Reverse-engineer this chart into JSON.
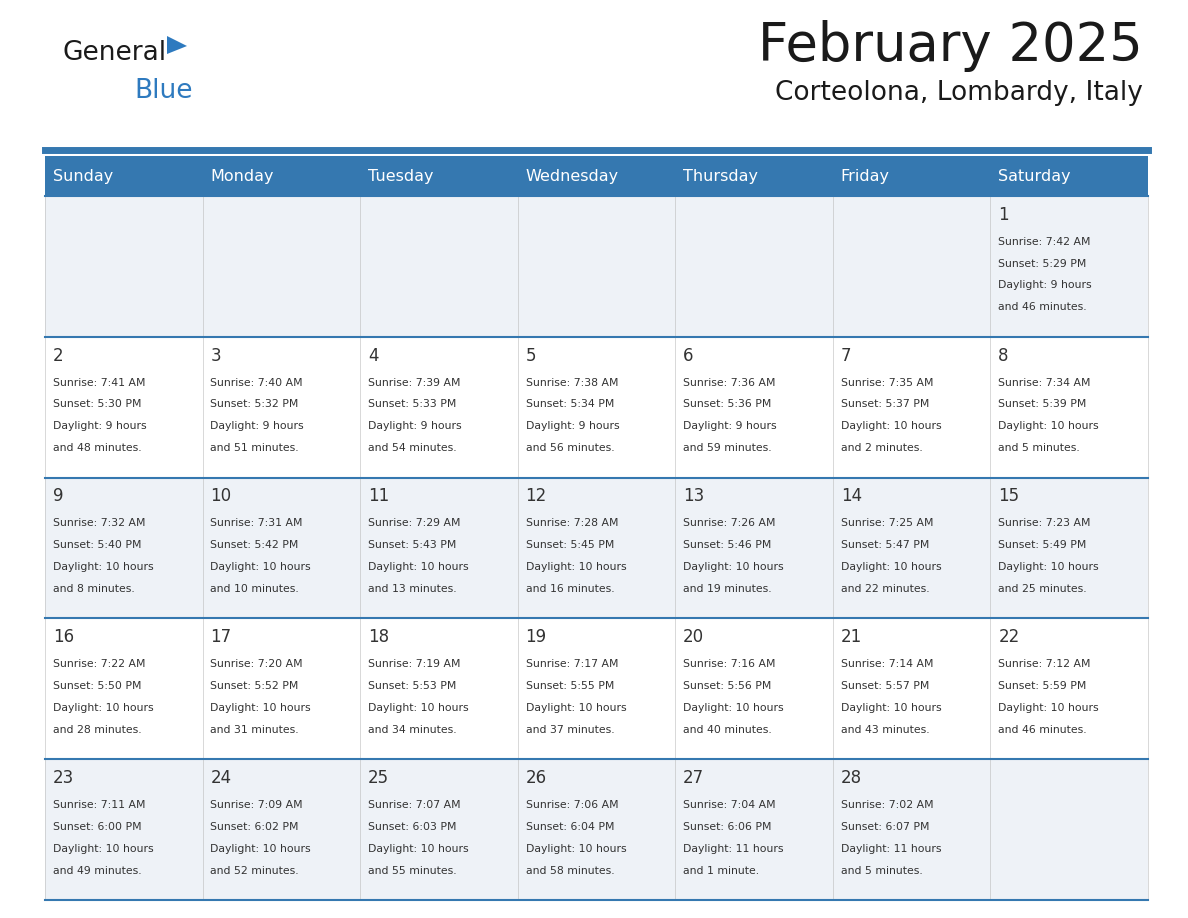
{
  "title": "February 2025",
  "subtitle": "Corteolona, Lombardy, Italy",
  "header_color": "#3578b0",
  "header_text_color": "#ffffff",
  "cell_bg_even": "#eef2f7",
  "cell_bg_odd": "#ffffff",
  "border_color": "#3578b0",
  "text_color": "#333333",
  "day_headers": [
    "Sunday",
    "Monday",
    "Tuesday",
    "Wednesday",
    "Thursday",
    "Friday",
    "Saturday"
  ],
  "days": [
    {
      "day": 1,
      "col": 6,
      "row": 0,
      "sunrise": "7:42 AM",
      "sunset": "5:29 PM",
      "daylight": "9 hours\nand 46 minutes."
    },
    {
      "day": 2,
      "col": 0,
      "row": 1,
      "sunrise": "7:41 AM",
      "sunset": "5:30 PM",
      "daylight": "9 hours\nand 48 minutes."
    },
    {
      "day": 3,
      "col": 1,
      "row": 1,
      "sunrise": "7:40 AM",
      "sunset": "5:32 PM",
      "daylight": "9 hours\nand 51 minutes."
    },
    {
      "day": 4,
      "col": 2,
      "row": 1,
      "sunrise": "7:39 AM",
      "sunset": "5:33 PM",
      "daylight": "9 hours\nand 54 minutes."
    },
    {
      "day": 5,
      "col": 3,
      "row": 1,
      "sunrise": "7:38 AM",
      "sunset": "5:34 PM",
      "daylight": "9 hours\nand 56 minutes."
    },
    {
      "day": 6,
      "col": 4,
      "row": 1,
      "sunrise": "7:36 AM",
      "sunset": "5:36 PM",
      "daylight": "9 hours\nand 59 minutes."
    },
    {
      "day": 7,
      "col": 5,
      "row": 1,
      "sunrise": "7:35 AM",
      "sunset": "5:37 PM",
      "daylight": "10 hours\nand 2 minutes."
    },
    {
      "day": 8,
      "col": 6,
      "row": 1,
      "sunrise": "7:34 AM",
      "sunset": "5:39 PM",
      "daylight": "10 hours\nand 5 minutes."
    },
    {
      "day": 9,
      "col": 0,
      "row": 2,
      "sunrise": "7:32 AM",
      "sunset": "5:40 PM",
      "daylight": "10 hours\nand 8 minutes."
    },
    {
      "day": 10,
      "col": 1,
      "row": 2,
      "sunrise": "7:31 AM",
      "sunset": "5:42 PM",
      "daylight": "10 hours\nand 10 minutes."
    },
    {
      "day": 11,
      "col": 2,
      "row": 2,
      "sunrise": "7:29 AM",
      "sunset": "5:43 PM",
      "daylight": "10 hours\nand 13 minutes."
    },
    {
      "day": 12,
      "col": 3,
      "row": 2,
      "sunrise": "7:28 AM",
      "sunset": "5:45 PM",
      "daylight": "10 hours\nand 16 minutes."
    },
    {
      "day": 13,
      "col": 4,
      "row": 2,
      "sunrise": "7:26 AM",
      "sunset": "5:46 PM",
      "daylight": "10 hours\nand 19 minutes."
    },
    {
      "day": 14,
      "col": 5,
      "row": 2,
      "sunrise": "7:25 AM",
      "sunset": "5:47 PM",
      "daylight": "10 hours\nand 22 minutes."
    },
    {
      "day": 15,
      "col": 6,
      "row": 2,
      "sunrise": "7:23 AM",
      "sunset": "5:49 PM",
      "daylight": "10 hours\nand 25 minutes."
    },
    {
      "day": 16,
      "col": 0,
      "row": 3,
      "sunrise": "7:22 AM",
      "sunset": "5:50 PM",
      "daylight": "10 hours\nand 28 minutes."
    },
    {
      "day": 17,
      "col": 1,
      "row": 3,
      "sunrise": "7:20 AM",
      "sunset": "5:52 PM",
      "daylight": "10 hours\nand 31 minutes."
    },
    {
      "day": 18,
      "col": 2,
      "row": 3,
      "sunrise": "7:19 AM",
      "sunset": "5:53 PM",
      "daylight": "10 hours\nand 34 minutes."
    },
    {
      "day": 19,
      "col": 3,
      "row": 3,
      "sunrise": "7:17 AM",
      "sunset": "5:55 PM",
      "daylight": "10 hours\nand 37 minutes."
    },
    {
      "day": 20,
      "col": 4,
      "row": 3,
      "sunrise": "7:16 AM",
      "sunset": "5:56 PM",
      "daylight": "10 hours\nand 40 minutes."
    },
    {
      "day": 21,
      "col": 5,
      "row": 3,
      "sunrise": "7:14 AM",
      "sunset": "5:57 PM",
      "daylight": "10 hours\nand 43 minutes."
    },
    {
      "day": 22,
      "col": 6,
      "row": 3,
      "sunrise": "7:12 AM",
      "sunset": "5:59 PM",
      "daylight": "10 hours\nand 46 minutes."
    },
    {
      "day": 23,
      "col": 0,
      "row": 4,
      "sunrise": "7:11 AM",
      "sunset": "6:00 PM",
      "daylight": "10 hours\nand 49 minutes."
    },
    {
      "day": 24,
      "col": 1,
      "row": 4,
      "sunrise": "7:09 AM",
      "sunset": "6:02 PM",
      "daylight": "10 hours\nand 52 minutes."
    },
    {
      "day": 25,
      "col": 2,
      "row": 4,
      "sunrise": "7:07 AM",
      "sunset": "6:03 PM",
      "daylight": "10 hours\nand 55 minutes."
    },
    {
      "day": 26,
      "col": 3,
      "row": 4,
      "sunrise": "7:06 AM",
      "sunset": "6:04 PM",
      "daylight": "10 hours\nand 58 minutes."
    },
    {
      "day": 27,
      "col": 4,
      "row": 4,
      "sunrise": "7:04 AM",
      "sunset": "6:06 PM",
      "daylight": "11 hours\nand 1 minute."
    },
    {
      "day": 28,
      "col": 5,
      "row": 4,
      "sunrise": "7:02 AM",
      "sunset": "6:07 PM",
      "daylight": "11 hours\nand 5 minutes."
    }
  ],
  "num_rows": 5,
  "num_cols": 7
}
